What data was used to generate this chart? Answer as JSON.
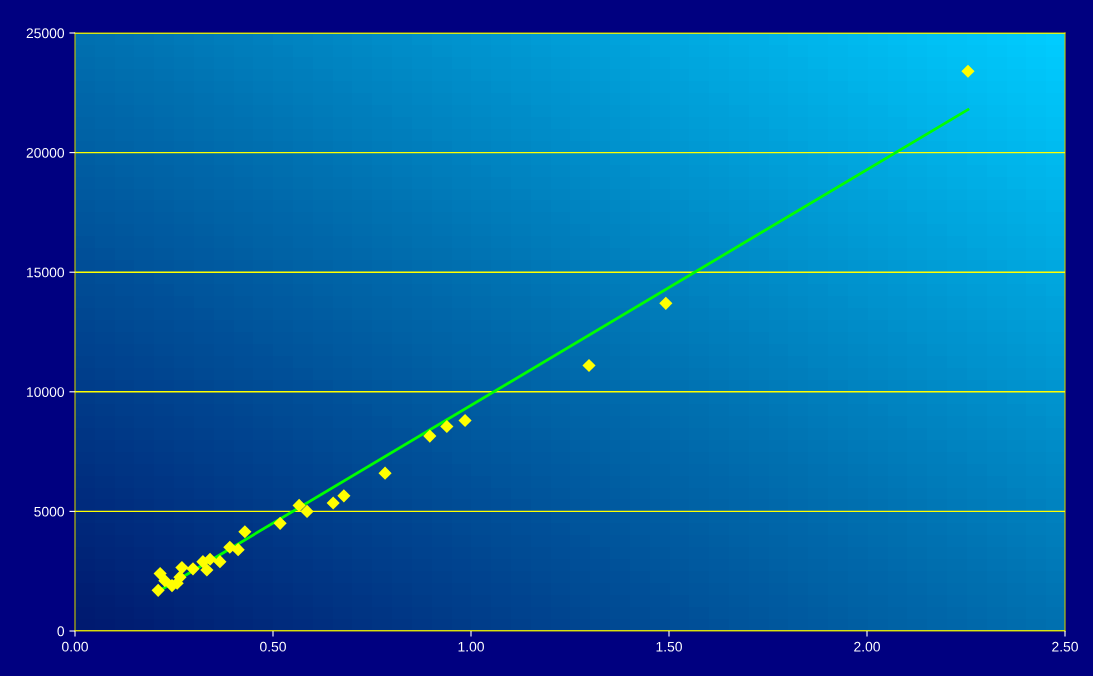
{
  "chart_data": {
    "type": "scatter",
    "xlim": [
      0,
      2.5
    ],
    "ylim": [
      0,
      25000
    ],
    "xticks": [
      {
        "value": 0,
        "label": "0.00"
      },
      {
        "value": 0.5,
        "label": "0.50"
      },
      {
        "value": 1,
        "label": "1.00"
      },
      {
        "value": 1.5,
        "label": "1.50"
      },
      {
        "value": 2,
        "label": "2.00"
      },
      {
        "value": 2.5,
        "label": "2.50"
      }
    ],
    "yticks": [
      0,
      5000,
      10000,
      15000,
      20000,
      25000
    ],
    "grid": "y",
    "series": [
      {
        "marker": "diamond",
        "color": "#ffff00",
        "x": [
          0.215,
          0.21,
          0.227,
          0.245,
          0.258,
          0.27,
          0.265,
          0.298,
          0.323,
          0.333,
          0.341,
          0.366,
          0.391,
          0.412,
          0.429,
          0.518,
          0.566,
          0.586,
          0.652,
          0.679,
          0.783,
          0.896,
          0.939,
          0.985,
          1.298,
          1.492,
          2.255
        ],
        "values": [
          2400,
          1700,
          2100,
          1900,
          2000,
          2650,
          2250,
          2600,
          2900,
          2550,
          3000,
          2900,
          3500,
          3400,
          4150,
          4500,
          5250,
          5000,
          5350,
          5650,
          6600,
          8150,
          8550,
          8800,
          11100,
          13700,
          23400
        ]
      },
      {
        "type": "line",
        "color": "#00ff00",
        "x": [
          0.21,
          2.255
        ],
        "values": [
          1650,
          21800
        ]
      }
    ]
  }
}
